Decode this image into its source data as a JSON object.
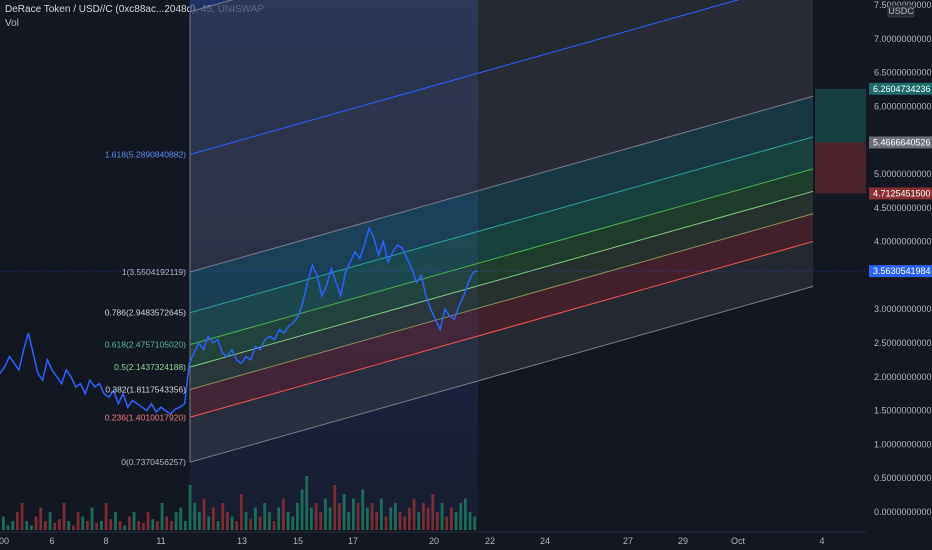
{
  "header": {
    "symbol": "DeRace Token / USD//C (0xc88ac...2048d), 45, UNISWAP",
    "volume_label": "Vol"
  },
  "currency_badge": "USDC",
  "colors": {
    "background": "#131722",
    "price_line": "#2962ff",
    "current_price_tag": "#2962ff",
    "green_tag": "#1b6b69",
    "red_tag": "#8c2f35",
    "gray_tag": "#6b6e78",
    "vol_up": "#1b6b59",
    "vol_down": "#7a2b34"
  },
  "chart_data": {
    "type": "line",
    "y_axis_ticks": [
      "7.5000000000",
      "7.0000000000",
      "6.5000000000",
      "6.0000000000",
      "5.5000000000",
      "5.0000000000",
      "4.5000000000",
      "4.0000000000",
      "3.0000000000",
      "2.5000000000",
      "2.0000000000",
      "1.5000000000",
      "1.0000000000",
      "0.5000000000",
      "0.0000000000"
    ],
    "ylim": [
      -0.3,
      7.5
    ],
    "x_axis_ticks": [
      "00",
      "6",
      "8",
      "11",
      "13",
      "15",
      "17",
      "20",
      "22",
      "24",
      "27",
      "29",
      "Oct",
      "4"
    ],
    "price_tags": {
      "green_target": "6.2604734236",
      "gray_level": "5.4666640526",
      "red_stop": "4.7125451500",
      "current_price": "3.5630541984"
    },
    "fib_levels": [
      {
        "label": "1.618(5.2890840882)",
        "value": 5.2890840882
      },
      {
        "label": "1(3.5504192119)",
        "value": 3.5504192119
      },
      {
        "label": "0.786(2.9483572645)",
        "value": 2.9483572645
      },
      {
        "label": "0.618(2.4757105020)",
        "value": 2.475710502
      },
      {
        "label": "0.5(2.1437324188)",
        "value": 2.1437324188
      },
      {
        "label": "0.382(1.8117543356)",
        "value": 1.8117543356
      },
      {
        "label": "0.236(1.4010017920)",
        "value": 1.401001792
      },
      {
        "label": "0(0.7370456257)",
        "value": 0.7370456257
      }
    ],
    "series": [
      {
        "values": [
          2.05,
          2.15,
          2.3,
          2.2,
          2.1,
          2.4,
          2.65,
          2.35,
          2.05,
          1.95,
          2.25,
          2.1,
          2.0,
          1.9,
          2.1,
          2.0,
          1.85,
          1.9,
          1.75,
          1.95,
          1.85,
          1.9,
          1.75,
          1.7,
          1.8,
          1.6,
          1.75,
          1.55,
          1.65,
          1.6,
          1.55,
          1.5,
          1.6,
          1.48,
          1.55,
          1.5,
          1.45,
          1.52,
          1.55,
          1.6,
          2.2,
          2.35,
          2.5,
          2.4,
          2.6,
          2.5,
          2.55,
          2.35,
          2.3,
          2.4,
          2.25,
          2.2,
          2.3,
          2.25,
          2.45,
          2.4,
          2.55,
          2.6,
          2.55,
          2.7,
          2.65,
          2.75,
          2.8,
          2.9,
          3.1,
          3.4,
          3.65,
          3.5,
          3.2,
          3.35,
          3.6,
          3.4,
          3.2,
          3.55,
          3.7,
          3.85,
          3.75,
          3.95,
          4.2,
          4.05,
          3.8,
          4.0,
          3.7,
          3.85,
          3.95,
          3.9,
          3.75,
          3.6,
          3.4,
          3.5,
          3.2,
          3.0,
          2.85,
          2.7,
          3.0,
          2.9,
          2.85,
          3.05,
          3.2,
          3.4,
          3.55,
          3.56
        ]
      }
    ],
    "volume": [
      0.15,
      0.05,
      0.1,
      0.2,
      0.3,
      0.1,
      0.05,
      0.15,
      0.25,
      0.1,
      0.2,
      0.08,
      0.12,
      0.3,
      0.1,
      0.05,
      0.2,
      0.15,
      0.1,
      0.25,
      0.08,
      0.1,
      0.3,
      0.12,
      0.2,
      0.1,
      0.05,
      0.15,
      0.2,
      0.1,
      0.08,
      0.2,
      0.12,
      0.1,
      0.3,
      0.15,
      0.1,
      0.2,
      0.25,
      0.1,
      0.5,
      0.3,
      0.2,
      0.35,
      0.15,
      0.25,
      0.1,
      0.3,
      0.2,
      0.15,
      0.1,
      0.4,
      0.2,
      0.12,
      0.25,
      0.15,
      0.3,
      0.2,
      0.1,
      0.25,
      0.35,
      0.2,
      0.15,
      0.3,
      0.45,
      0.6,
      0.25,
      0.3,
      0.2,
      0.35,
      0.25,
      0.5,
      0.3,
      0.4,
      0.2,
      0.35,
      0.3,
      0.45,
      0.25,
      0.3,
      0.2,
      0.35,
      0.15,
      0.25,
      0.3,
      0.2,
      0.15,
      0.25,
      0.35,
      0.2,
      0.3,
      0.25,
      0.4,
      0.2,
      0.3,
      0.15,
      0.25,
      0.2,
      0.3,
      0.35,
      0.2,
      0.15
    ]
  }
}
